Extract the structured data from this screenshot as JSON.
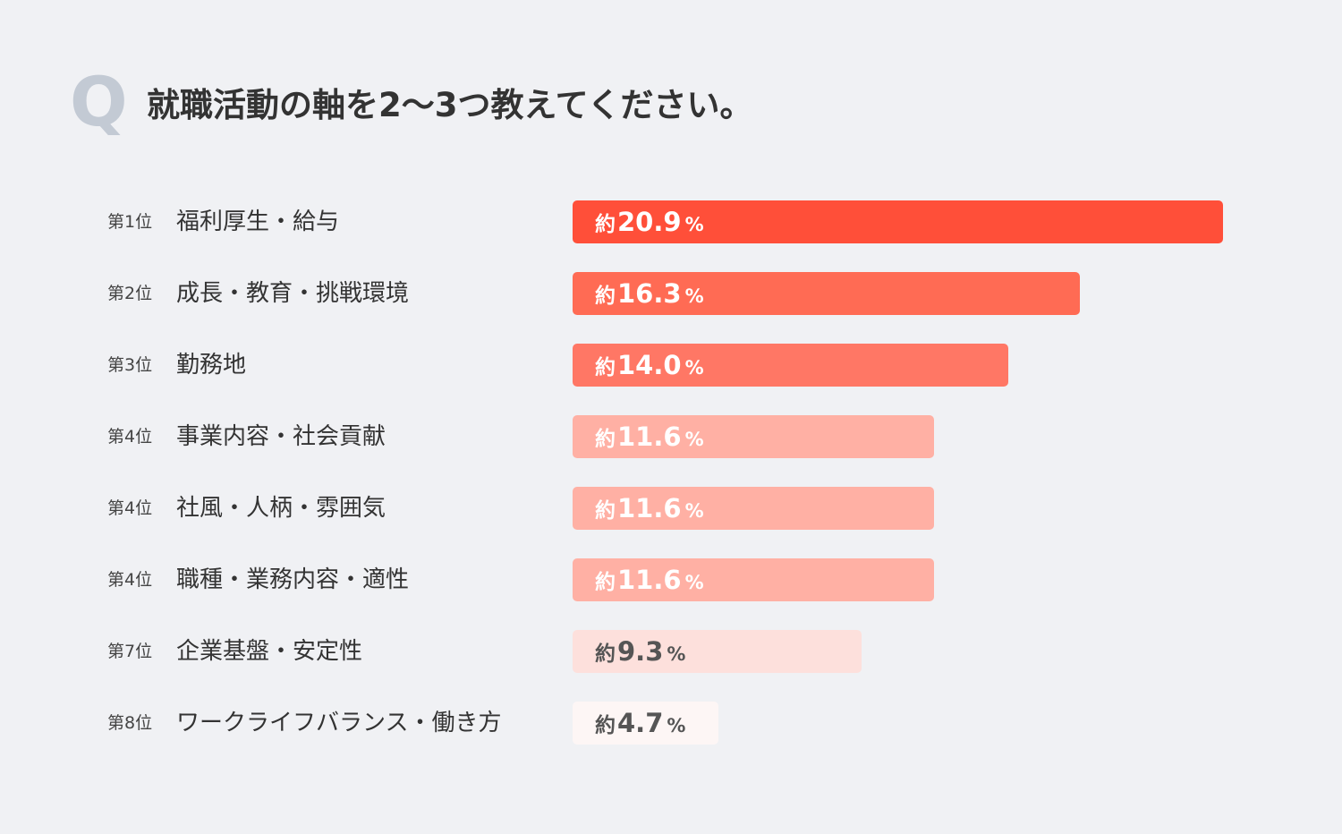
{
  "header": {
    "q_mark": "Q",
    "question": "就職活動の軸を2〜3つ教えてください。"
  },
  "chart_data": {
    "type": "bar",
    "orientation": "horizontal",
    "title": "就職活動の軸を2〜3つ教えてください。",
    "value_prefix": "約",
    "value_unit": "%",
    "xlim": [
      0,
      20.9
    ],
    "ranks": [
      "第1位",
      "第2位",
      "第3位",
      "第4位",
      "第4位",
      "第4位",
      "第7位",
      "第8位"
    ],
    "categories": [
      "福利厚生・給与",
      "成長・教育・挑戦環境",
      "勤務地",
      "事業内容・社会貢献",
      "社風・人柄・雰囲気",
      "職種・業務内容・適性",
      "企業基盤・安定性",
      "ワークライフバランス・働き方"
    ],
    "values": [
      20.9,
      16.3,
      14.0,
      11.6,
      11.6,
      11.6,
      9.3,
      4.7
    ],
    "value_labels": [
      "20.9",
      "16.3",
      "14.0",
      "11.6",
      "11.6",
      "11.6",
      "9.3",
      "4.7"
    ],
    "bar_colors": [
      "#ff4f39",
      "#ff6b54",
      "#ff7765",
      "#ffb0a4",
      "#ffb0a4",
      "#ffb0a4",
      "#fde0dc",
      "#fdf6f5"
    ],
    "label_colors": [
      "#ffffff",
      "#ffffff",
      "#ffffff",
      "#ffffff",
      "#ffffff",
      "#ffffff",
      "#555555",
      "#555555"
    ]
  }
}
